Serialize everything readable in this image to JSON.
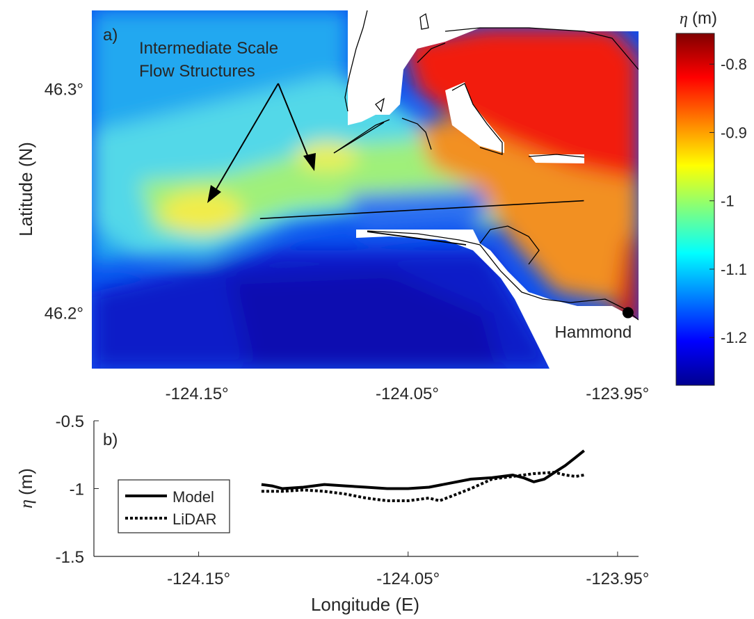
{
  "chart_data": [
    {
      "type": "heatmap",
      "panel_label": "a)",
      "xlabel": "",
      "ylabel": "Latitude (N)",
      "x_range": [
        -124.2,
        -123.94
      ],
      "y_range": [
        46.175,
        46.335
      ],
      "xticks": [
        -124.15,
        -124.05,
        -123.95
      ],
      "xtick_labels": [
        "-124.15°",
        "-124.05°",
        "-123.95°"
      ],
      "yticks": [
        46.3,
        46.2
      ],
      "ytick_labels": [
        "46.3°",
        "46.2°"
      ],
      "colorbar": {
        "label_symbol": "η",
        "label_unit": "(m)",
        "range": [
          -1.27,
          -0.755
        ],
        "ticks": [
          -0.8,
          -0.9,
          -1,
          -1.1,
          -1.2
        ],
        "tick_labels": [
          "-0.8",
          "-0.9",
          "-1",
          "-1.1",
          "-1.2"
        ],
        "colormap": "jet"
      },
      "annotations": [
        {
          "text": "Intermediate Scale",
          "line": 1
        },
        {
          "text": "Flow Structures",
          "line": 2
        }
      ],
      "station": {
        "label": "Hammond",
        "lon": -123.945,
        "lat": 46.2
      },
      "transect": [
        [
          -124.12,
          46.242
        ],
        [
          -123.966,
          46.25
        ]
      ]
    },
    {
      "type": "line",
      "panel_label": "b)",
      "xlabel": "Longitude (E)",
      "ylabel_symbol": "η",
      "ylabel_unit": "(m)",
      "xlim": [
        -124.2,
        -123.94
      ],
      "ylim": [
        -1.5,
        -0.5
      ],
      "xticks": [
        -124.15,
        -124.05,
        -123.95
      ],
      "xtick_labels": [
        "-124.15°",
        "-124.05°",
        "-123.95°"
      ],
      "yticks": [
        -0.5,
        -1,
        -1.5
      ],
      "ytick_labels": [
        "-0.5",
        "-1",
        "-1.5"
      ],
      "legend": {
        "position": "bottom-left"
      },
      "series": [
        {
          "name": "Model",
          "style": "solid",
          "x": [
            -124.12,
            -124.115,
            -124.11,
            -124.1,
            -124.09,
            -124.08,
            -124.07,
            -124.06,
            -124.05,
            -124.04,
            -124.03,
            -124.02,
            -124.01,
            -124.0,
            -123.995,
            -123.99,
            -123.985,
            -123.98,
            -123.975,
            -123.97,
            -123.966
          ],
          "y": [
            -0.97,
            -0.98,
            -1.0,
            -0.99,
            -0.97,
            -0.98,
            -0.99,
            -1.0,
            -1.0,
            -0.99,
            -0.96,
            -0.93,
            -0.92,
            -0.9,
            -0.92,
            -0.95,
            -0.93,
            -0.88,
            -0.83,
            -0.77,
            -0.72
          ]
        },
        {
          "name": "LiDAR",
          "style": "dotted",
          "x": [
            -124.12,
            -124.11,
            -124.1,
            -124.09,
            -124.08,
            -124.07,
            -124.06,
            -124.05,
            -124.04,
            -124.035,
            -124.03,
            -124.02,
            -124.01,
            -124.0,
            -123.99,
            -123.98,
            -123.975,
            -123.97,
            -123.966
          ],
          "y": [
            -1.02,
            -1.02,
            -1.01,
            -1.02,
            -1.04,
            -1.07,
            -1.09,
            -1.09,
            -1.07,
            -1.09,
            -1.06,
            -1.0,
            -0.93,
            -0.91,
            -0.89,
            -0.88,
            -0.9,
            -0.91,
            -0.9
          ]
        }
      ]
    }
  ]
}
